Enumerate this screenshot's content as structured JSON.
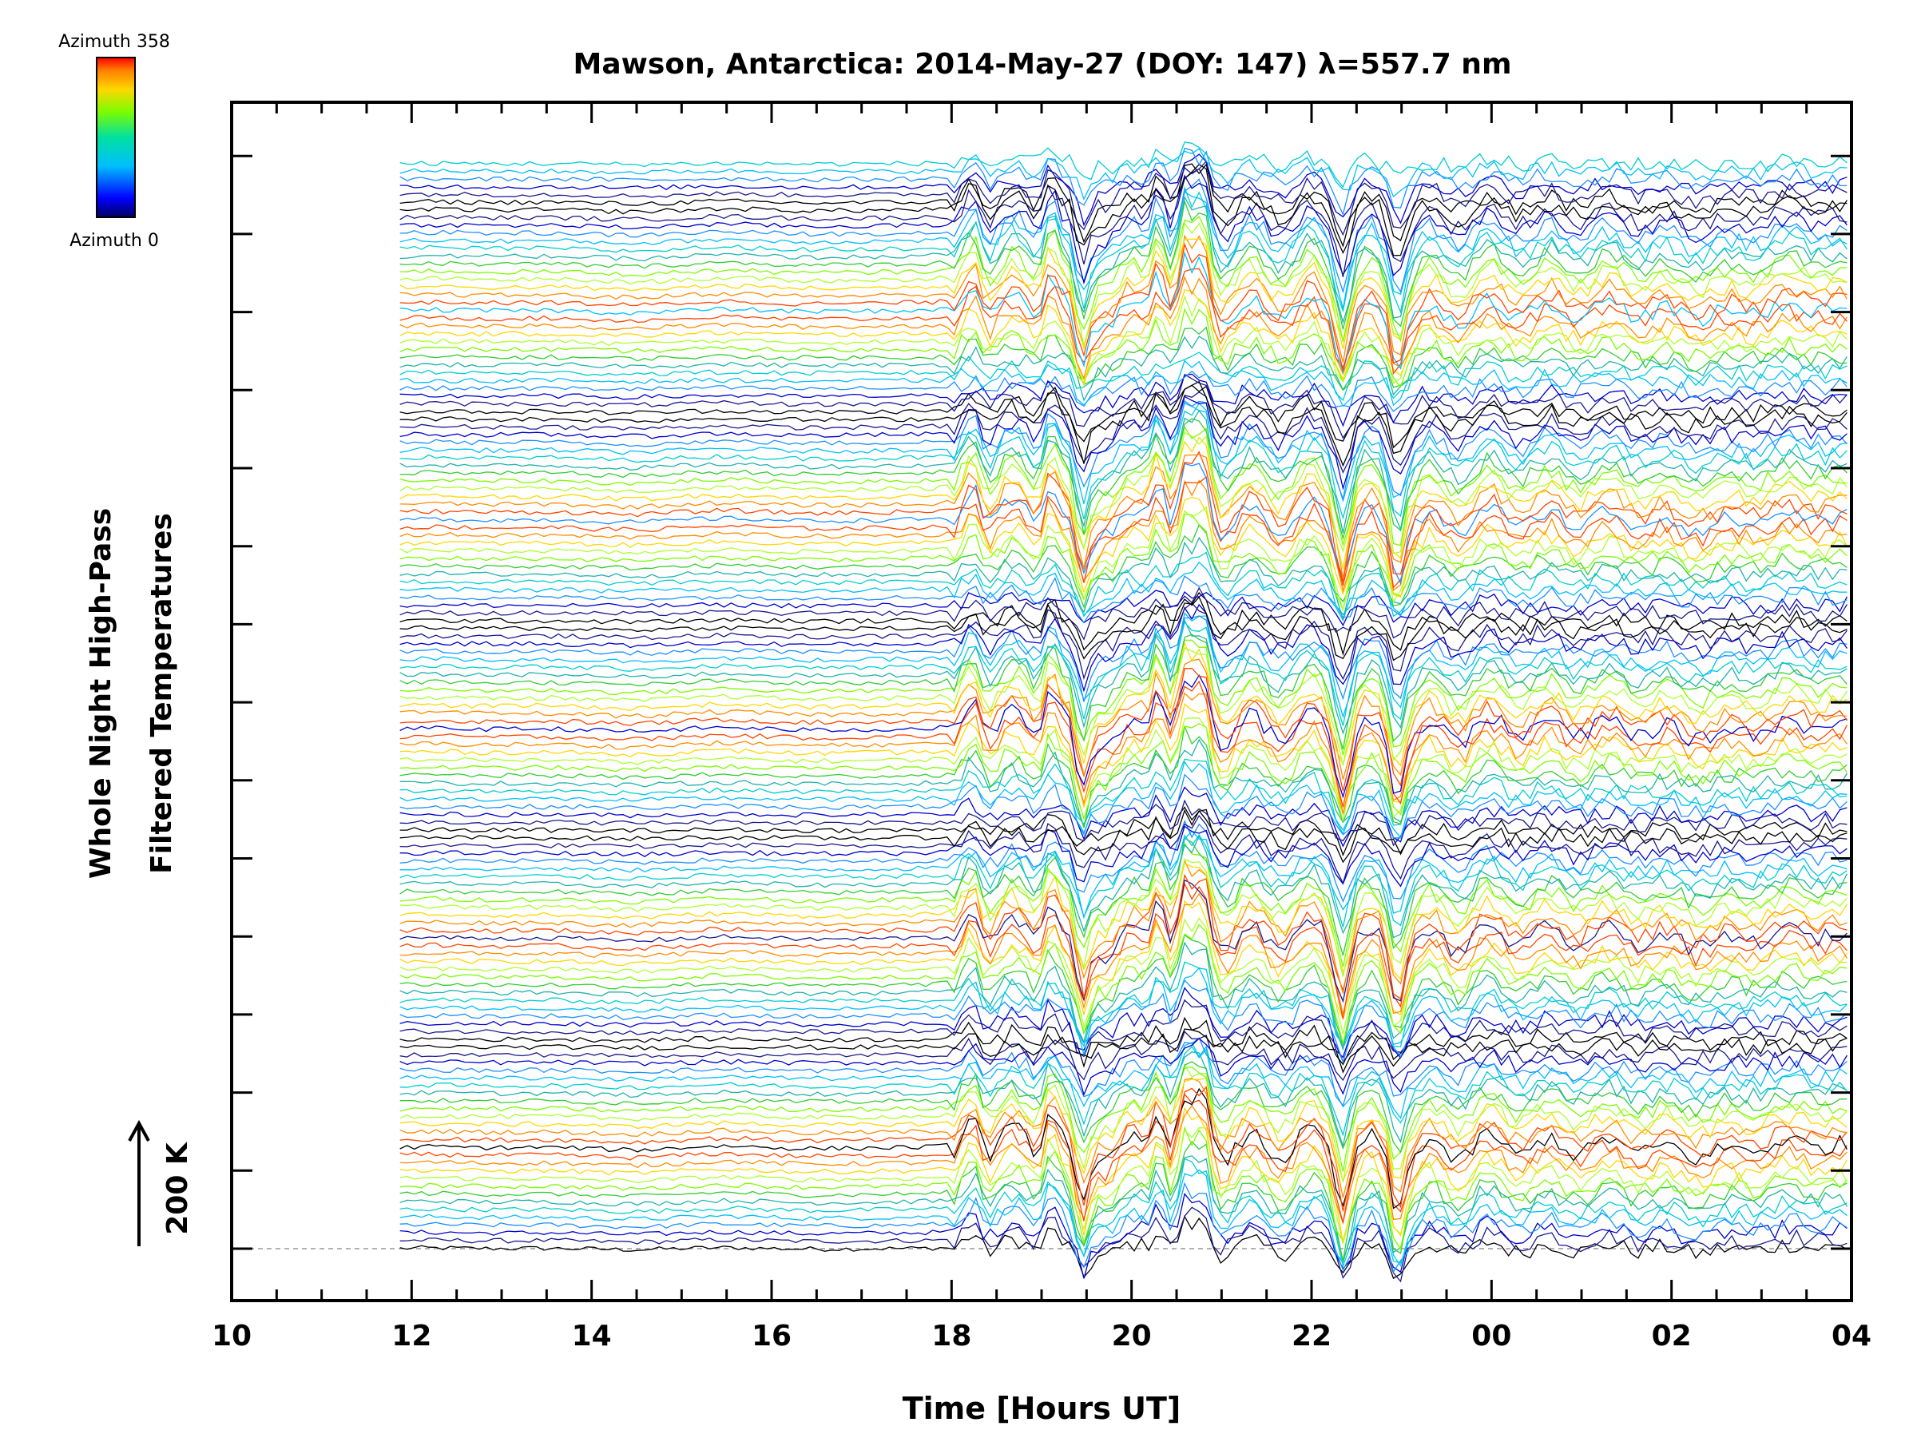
{
  "chart_data": {
    "type": "line",
    "title": "Mawson, Antarctica: 2014-May-27 (DOY: 147) λ=557.7 nm",
    "xlabel": "Time [Hours UT]",
    "ylabel": [
      "Whole Night High-Pass",
      "Filtered Temperatures"
    ],
    "x_ticks": [
      "10",
      "12",
      "14",
      "16",
      "18",
      "20",
      "22",
      "00",
      "02",
      "04"
    ],
    "x_range_hours": [
      10,
      28
    ],
    "data_start_hour": 11.87,
    "scale_bar_label": "200 K",
    "colorbar": {
      "top_label": "Azimuth  358",
      "bottom_label": "Azimuth  0",
      "azimuth_range": [
        0,
        358
      ]
    },
    "series_count": 141,
    "series_offset_K": 28.6,
    "description": "Stacked high-pass filtered temperature traces, one per azimuth, each offset vertically; waves are strongest 18-23 UT.",
    "event_hours": [
      18.25,
      19.1,
      19.45,
      20.3,
      20.6,
      20.8,
      22.35,
      22.95
    ],
    "event_amplitudes_K": [
      150,
      180,
      -260,
      210,
      180,
      200,
      -220,
      -190
    ],
    "series_palette": [
      "#000000",
      "#1a1a8c",
      "#0000cd",
      "#1e90ff",
      "#00bfff",
      "#00ced1",
      "#20b2aa",
      "#32cd32",
      "#7cfc00",
      "#adff2f",
      "#ffd700",
      "#ff8c00",
      "#ff4500"
    ]
  }
}
